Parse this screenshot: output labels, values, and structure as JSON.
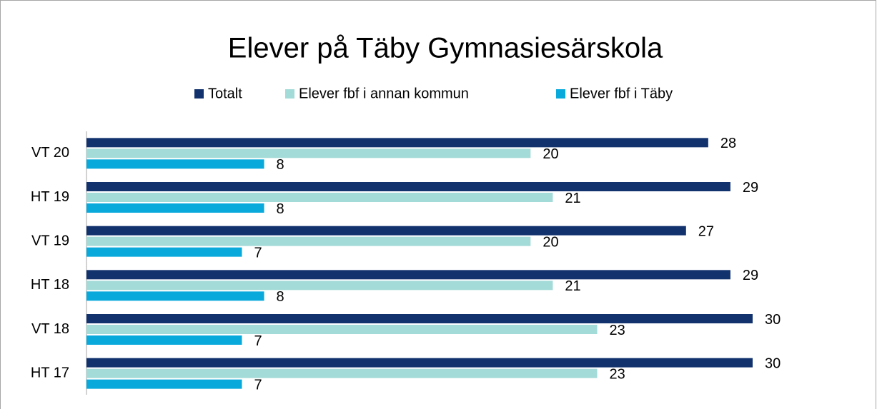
{
  "chart_data": {
    "type": "hbar",
    "title": "Elever på Täby Gymnasiesärskola",
    "categories": [
      "VT 20",
      "HT 19",
      "VT 19",
      "HT 18",
      "VT 18",
      "HT 17"
    ],
    "series": [
      {
        "name": "Totalt",
        "color": "#12326e",
        "values": [
          28,
          29,
          27,
          29,
          30,
          30
        ]
      },
      {
        "name": "Elever fbf i annan kommun",
        "color": "#a3dbd8",
        "values": [
          20,
          21,
          20,
          21,
          23,
          23
        ]
      },
      {
        "name": "Elever fbf i Täby",
        "color": "#0aa9dc",
        "values": [
          8,
          8,
          7,
          8,
          7,
          7
        ]
      }
    ],
    "legend": "top"
  }
}
